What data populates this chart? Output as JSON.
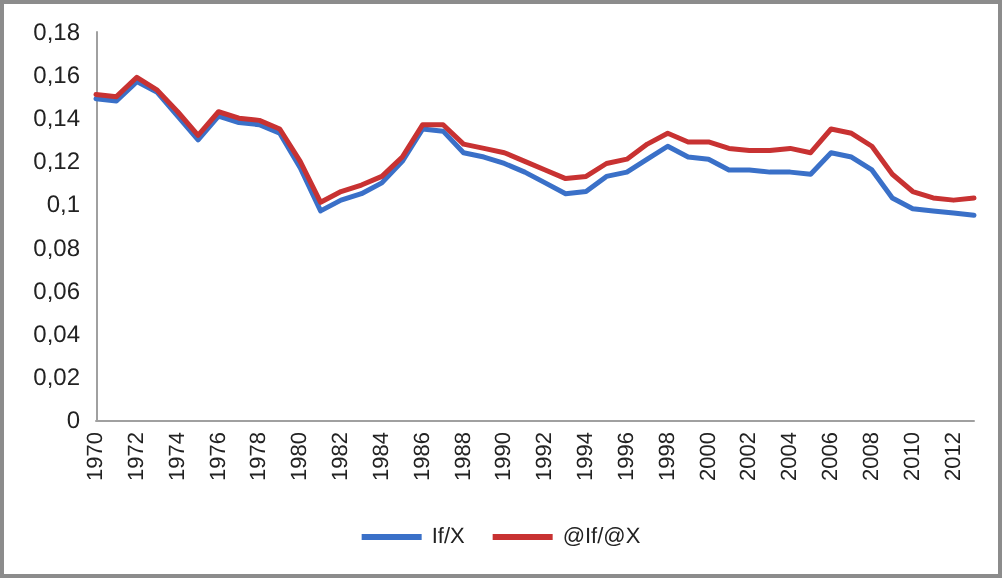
{
  "chart_data": {
    "type": "line",
    "categories": [
      "1970",
      null,
      "1972",
      null,
      "1974",
      null,
      "1976",
      null,
      "1978",
      null,
      "1980",
      null,
      "1982",
      null,
      "1984",
      null,
      "1986",
      null,
      "1988",
      null,
      "1990",
      null,
      "1992",
      null,
      "1994",
      null,
      "1996",
      null,
      "1998",
      null,
      "2000",
      null,
      "2002",
      null,
      "2004",
      null,
      "2006",
      null,
      "2008",
      null,
      "2010",
      null,
      "2012",
      null
    ],
    "series": [
      {
        "name": "If/X",
        "color": "#3a70c8",
        "values": [
          0.149,
          0.148,
          0.157,
          0.152,
          0.141,
          0.13,
          0.141,
          0.138,
          0.137,
          0.133,
          0.117,
          0.097,
          0.102,
          0.105,
          0.11,
          0.12,
          0.135,
          0.134,
          0.124,
          0.122,
          0.119,
          0.115,
          0.11,
          0.105,
          0.106,
          0.113,
          0.115,
          0.121,
          0.127,
          0.122,
          0.121,
          0.116,
          0.116,
          0.115,
          0.115,
          0.114,
          0.124,
          0.122,
          0.116,
          0.103,
          0.098,
          0.097,
          0.096,
          0.095
        ]
      },
      {
        "name": "@If/@X",
        "color": "#c83232",
        "values": [
          0.151,
          0.15,
          0.159,
          0.153,
          0.143,
          0.132,
          0.143,
          0.14,
          0.139,
          0.135,
          0.12,
          0.101,
          0.106,
          0.109,
          0.113,
          0.122,
          0.137,
          0.137,
          0.128,
          0.126,
          0.124,
          0.12,
          0.116,
          0.112,
          0.113,
          0.119,
          0.121,
          0.128,
          0.133,
          0.129,
          0.129,
          0.126,
          0.125,
          0.125,
          0.126,
          0.124,
          0.135,
          0.133,
          0.127,
          0.114,
          0.106,
          0.103,
          0.102,
          0.103
        ]
      }
    ],
    "ylim": [
      0,
      0.18
    ],
    "yticks": [
      {
        "value": 0,
        "label": "0"
      },
      {
        "value": 0.02,
        "label": "0,02"
      },
      {
        "value": 0.04,
        "label": "0,04"
      },
      {
        "value": 0.06,
        "label": "0,06"
      },
      {
        "value": 0.08,
        "label": "0,08"
      },
      {
        "value": 0.1,
        "label": "0,1"
      },
      {
        "value": 0.12,
        "label": "0,12"
      },
      {
        "value": 0.14,
        "label": "0,14"
      },
      {
        "value": 0.16,
        "label": "0,16"
      },
      {
        "value": 0.18,
        "label": "0,18"
      }
    ],
    "grid": false,
    "legend": "bottom",
    "marker": "none",
    "line_style": "solid"
  }
}
